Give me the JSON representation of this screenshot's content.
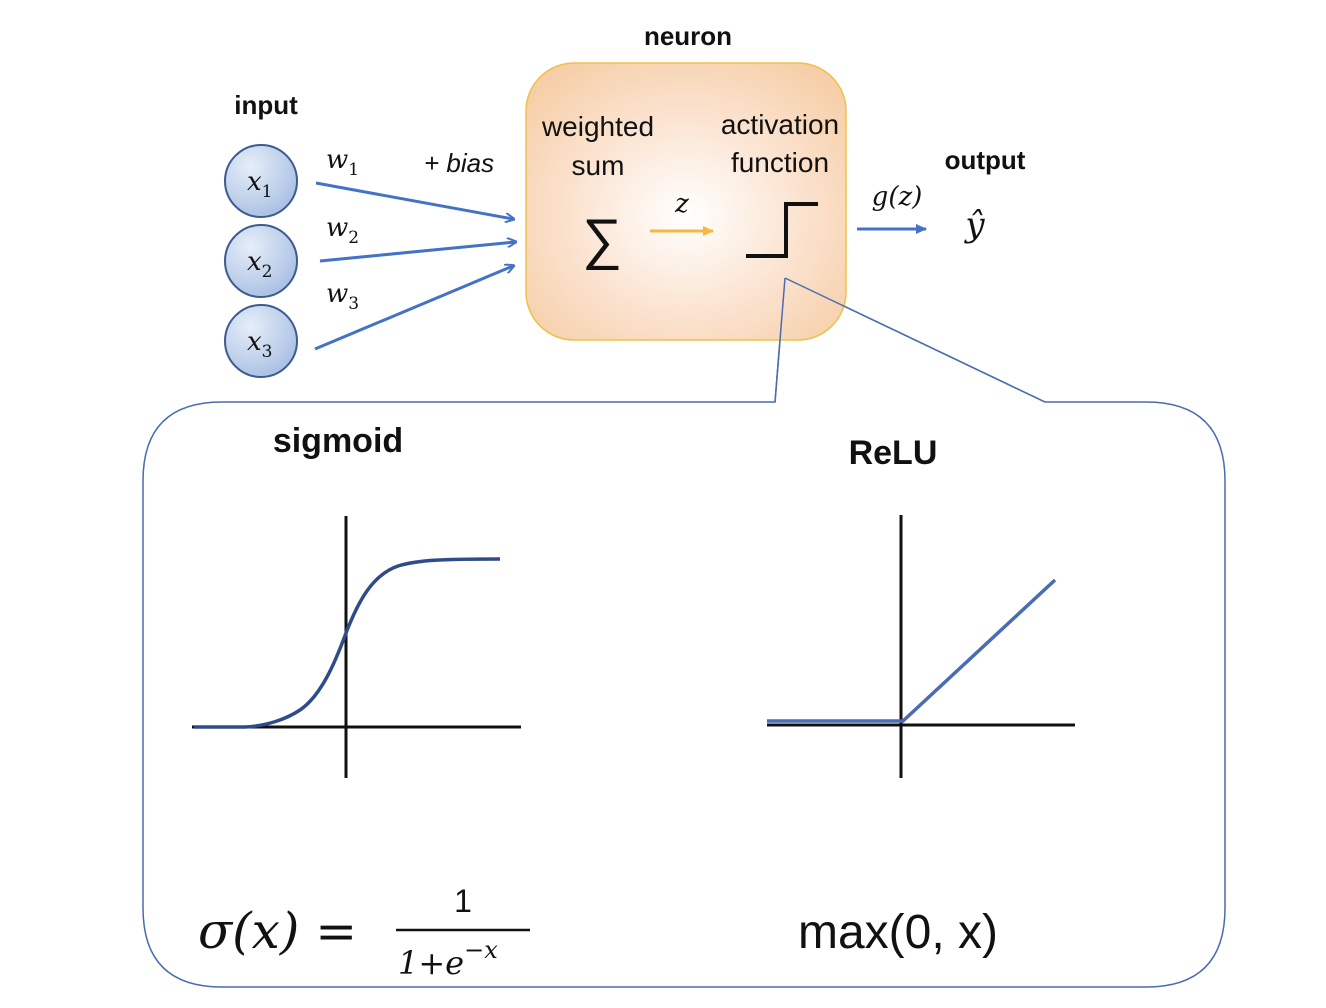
{
  "labels": {
    "neuron": "neuron",
    "input": "input",
    "output": "output",
    "bias": "+ bias",
    "weighted_sum_line1": "weighted",
    "weighted_sum_line2": "sum",
    "activation_line1": "activation",
    "activation_line2": "function",
    "sigmoid": "sigmoid",
    "relu": "ReLU"
  },
  "inputs": [
    {
      "var": "x",
      "sub": "1"
    },
    {
      "var": "x",
      "sub": "2"
    },
    {
      "var": "x",
      "sub": "3"
    }
  ],
  "weights": [
    {
      "var": "w",
      "sub": "1"
    },
    {
      "var": "w",
      "sub": "2"
    },
    {
      "var": "w",
      "sub": "3"
    }
  ],
  "math": {
    "sum_symbol": "∑",
    "z": "z",
    "gz": "g(z)",
    "yhat": "ŷ"
  },
  "formulas": {
    "sigmoid_lhs": "σ(x) =",
    "sigmoid_num": "1",
    "sigmoid_den_base": "1+e",
    "sigmoid_den_exp": "−x",
    "relu": "max(0, x)"
  },
  "colors": {
    "arrow_blue": "#4472c4",
    "z_arrow": "#f4b942",
    "neuron_border": "#f0c04a",
    "callout_border": "#4a6cb0",
    "sigmoid_curve": "#2f4c8a",
    "relu_line": "#4a6cb4",
    "input_circle_fill": "#c5d6ee",
    "input_circle_border": "#3e5a92"
  }
}
